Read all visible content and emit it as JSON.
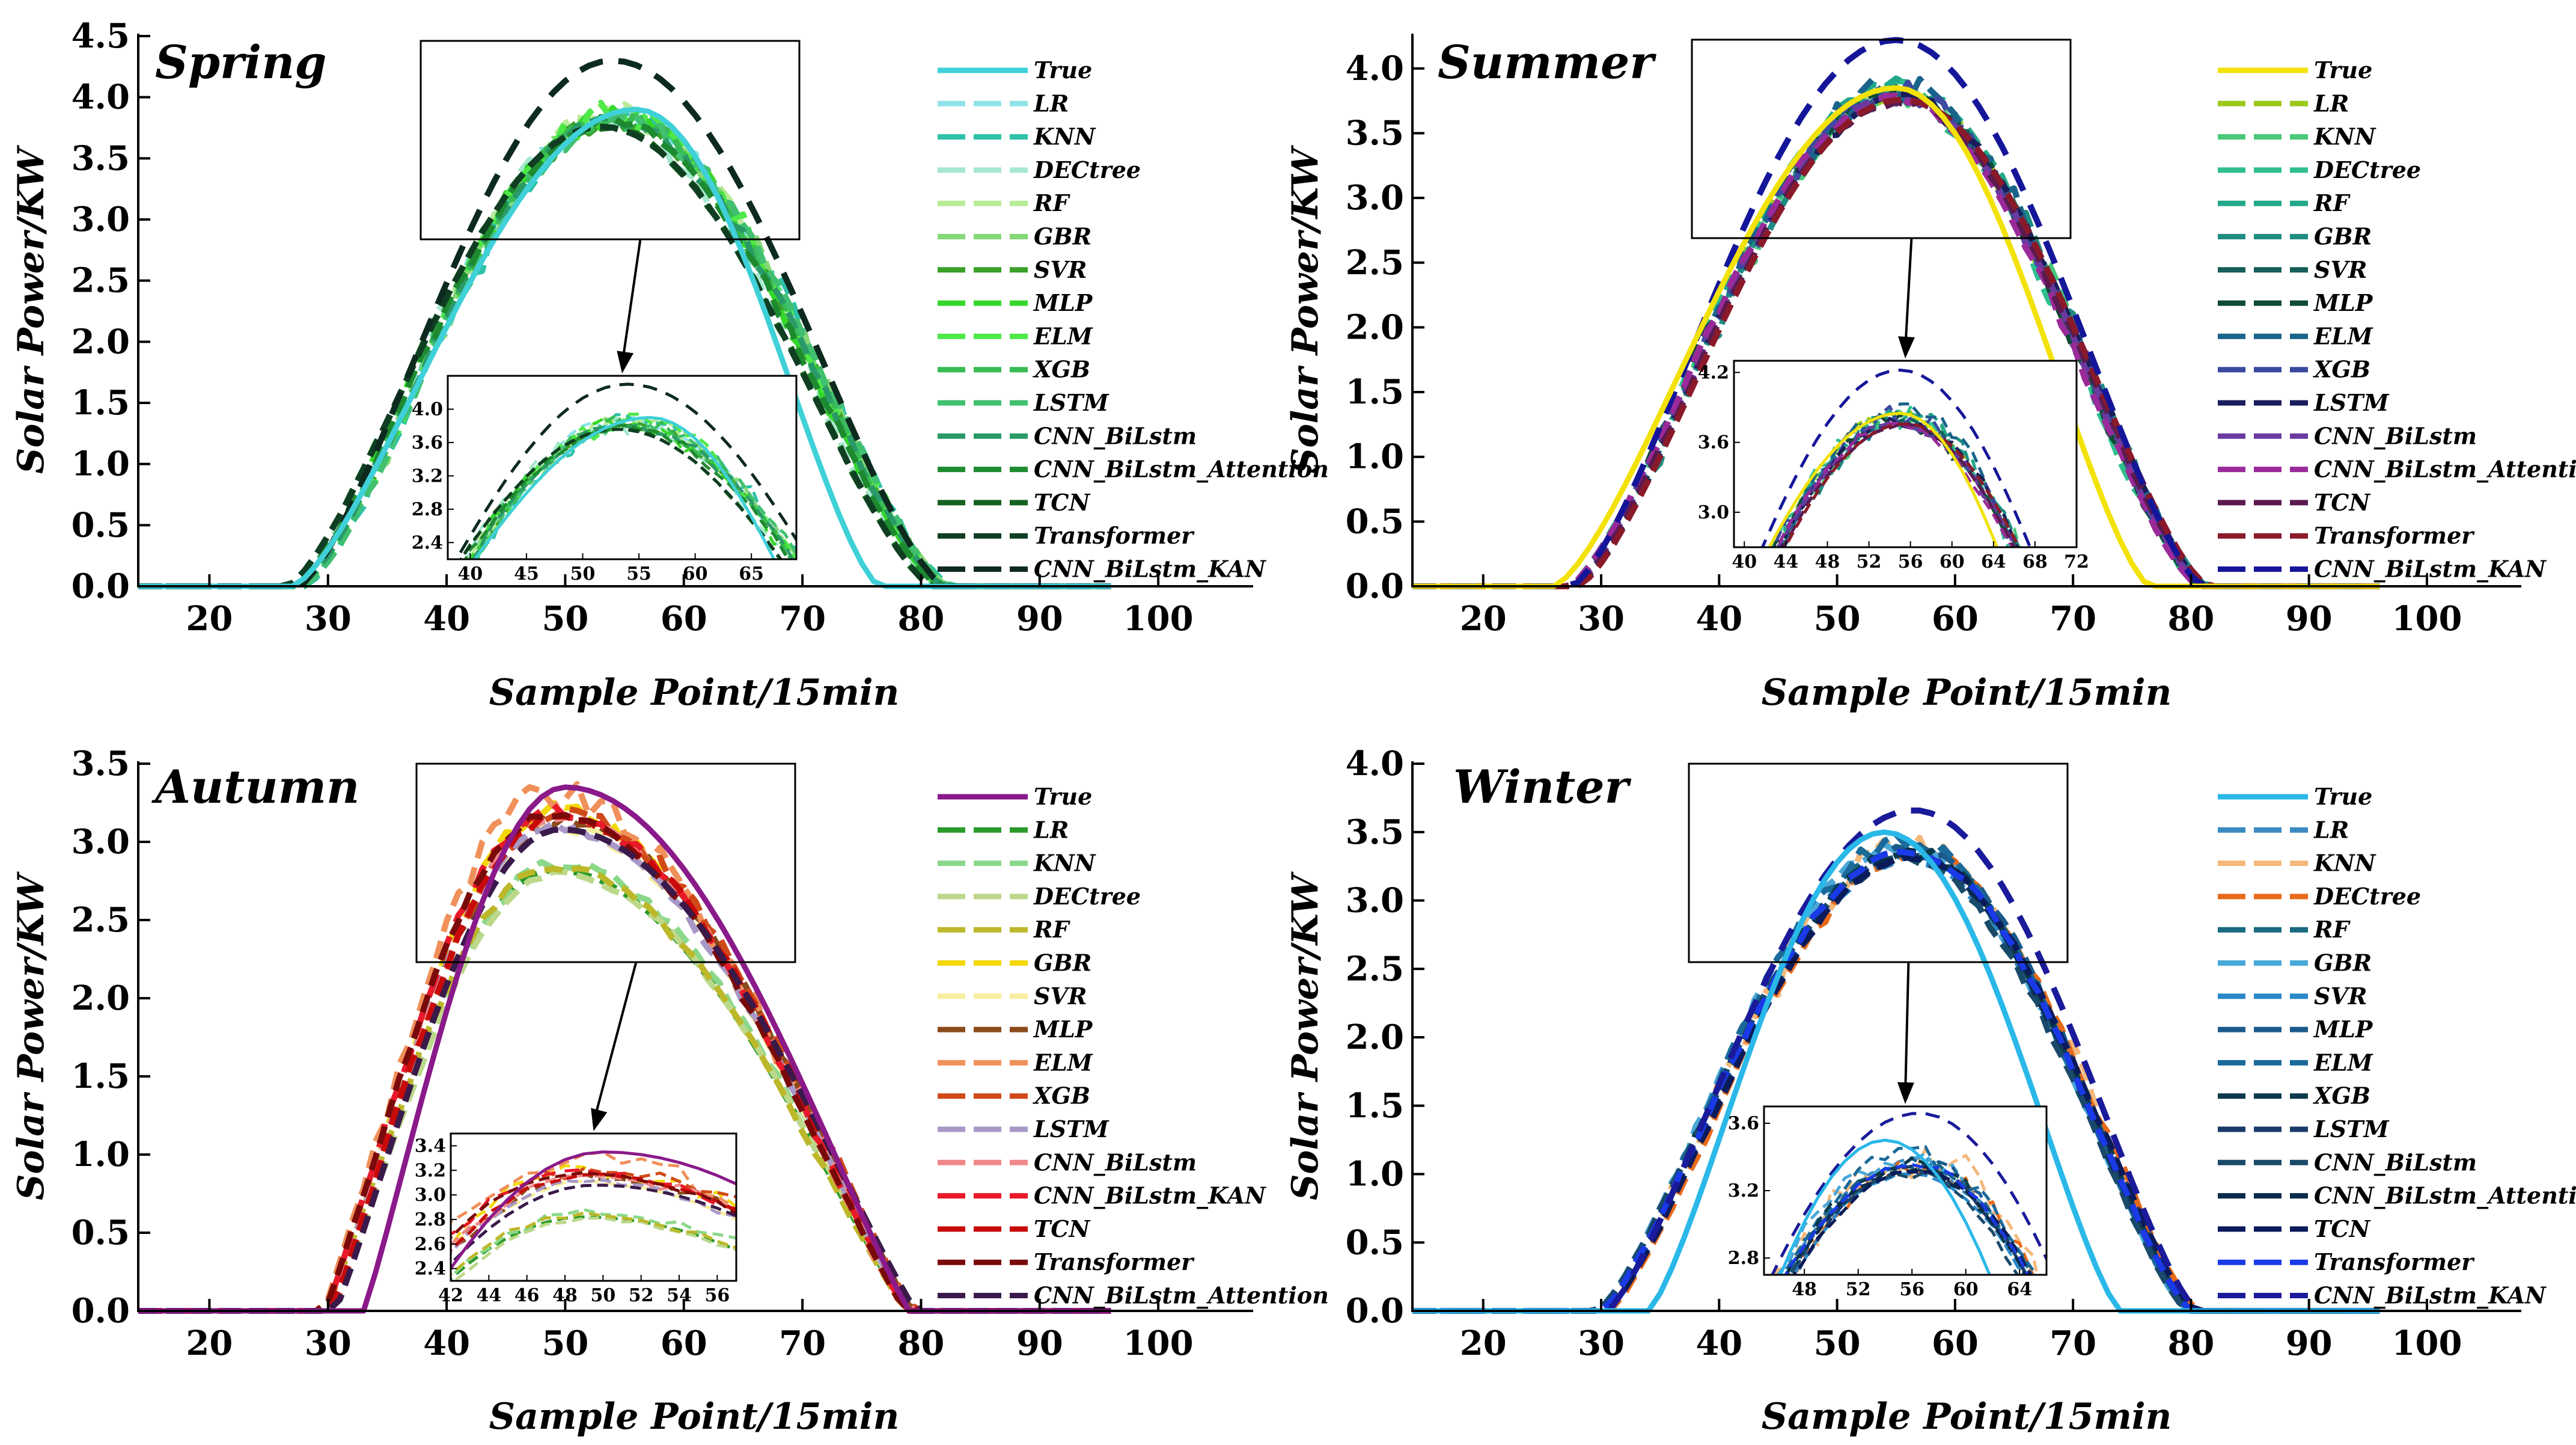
{
  "figure": {
    "x_axis_label": "Sample Point/15min",
    "y_axis_label": "Solar Power/KW"
  },
  "chart_data": [
    {
      "type": "line",
      "title": "Spring",
      "xlabel": "Sample Point/15min",
      "ylabel": "Solar Power/KW",
      "xlim": [
        14,
        108
      ],
      "ylim": [
        0,
        4.5
      ],
      "xticks": [
        20,
        30,
        40,
        50,
        60,
        70,
        80,
        90,
        100
      ],
      "yticks": [
        0.0,
        0.5,
        1.0,
        1.5,
        2.0,
        2.5,
        3.0,
        3.5,
        4.0,
        4.5
      ],
      "ytick_labels": [
        "0.0",
        "0.5",
        "1.0",
        "1.5",
        "2.0",
        "2.5",
        "3.0",
        "3.5",
        "4.0",
        "4.5"
      ],
      "curve": {
        "start": 27.5,
        "end": 82,
        "peak_x": 54,
        "peak": 3.9,
        "p": 1.4
      },
      "true_curve": {
        "start": 27,
        "end": 76.5,
        "peak_x": 56,
        "peak": 3.9,
        "p": 1.4
      },
      "inset": {
        "xlim": [
          38,
          69
        ],
        "ylim": [
          2.2,
          4.4
        ],
        "xticks": [
          40,
          45,
          50,
          55,
          60,
          65
        ],
        "yticks": [
          2.4,
          2.8,
          3.2,
          3.6,
          4.0
        ]
      },
      "series": [
        {
          "name": "True",
          "color": "#3fd0d8",
          "solid": true,
          "peak": 3.9,
          "shift": 0,
          "noise": 0,
          "seed": 1
        },
        {
          "name": "LR",
          "color": "#8fe3e8",
          "solid": false,
          "peak": 3.86,
          "shift": 0,
          "noise": 0.09,
          "seed": 2
        },
        {
          "name": "KNN",
          "color": "#2dc2a8",
          "solid": false,
          "peak": 3.84,
          "shift": 0.5,
          "noise": 0.12,
          "seed": 3
        },
        {
          "name": "DECtree",
          "color": "#a6e8cf",
          "solid": false,
          "peak": 3.82,
          "shift": -0.5,
          "noise": 0.12,
          "seed": 4
        },
        {
          "name": "RF",
          "color": "#b8ec98",
          "solid": false,
          "peak": 3.86,
          "shift": 0,
          "noise": 0.1,
          "seed": 5
        },
        {
          "name": "GBR",
          "color": "#86d878",
          "solid": false,
          "peak": 3.84,
          "shift": 0.3,
          "noise": 0.11,
          "seed": 6
        },
        {
          "name": "SVR",
          "color": "#3aa028",
          "solid": false,
          "peak": 3.8,
          "shift": 0,
          "noise": 0.08,
          "seed": 7
        },
        {
          "name": "MLP",
          "color": "#35d82a",
          "solid": false,
          "peak": 3.84,
          "shift": -0.3,
          "noise": 0.12,
          "seed": 8
        },
        {
          "name": "ELM",
          "color": "#4ee848",
          "solid": false,
          "peak": 3.85,
          "shift": 0.2,
          "noise": 0.12,
          "seed": 9
        },
        {
          "name": "XGB",
          "color": "#38bb55",
          "solid": false,
          "peak": 3.84,
          "shift": 0,
          "noise": 0.1,
          "seed": 10
        },
        {
          "name": "LSTM",
          "color": "#40c070",
          "solid": false,
          "peak": 3.82,
          "shift": 0.4,
          "noise": 0.08,
          "seed": 11
        },
        {
          "name": "CNN_BiLstm",
          "color": "#2a9a68",
          "solid": false,
          "peak": 3.8,
          "shift": 0,
          "noise": 0.06,
          "seed": 12
        },
        {
          "name": "CNN_BiLstm_Attention",
          "color": "#1e8a30",
          "solid": false,
          "peak": 3.8,
          "shift": -0.4,
          "noise": 0.05,
          "seed": 13
        },
        {
          "name": "TCN",
          "color": "#14621e",
          "solid": false,
          "peak": 3.76,
          "shift": -1,
          "noise": 0.02,
          "seed": 14
        },
        {
          "name": "Transformer",
          "color": "#103e22",
          "solid": false,
          "peak": 3.76,
          "shift": -1,
          "noise": 0.0,
          "seed": 15
        },
        {
          "name": "CNN_BiLstm_KAN",
          "color": "#0d2a1e",
          "solid": false,
          "peak": 4.3,
          "shift": 0,
          "noise": 0.0,
          "seed": 16
        }
      ]
    },
    {
      "type": "line",
      "title": "Summer",
      "xlabel": "Sample Point/15min",
      "ylabel": "Solar Power/KW",
      "xlim": [
        14,
        108
      ],
      "ylim": [
        0,
        4.25
      ],
      "xticks": [
        20,
        30,
        40,
        50,
        60,
        70,
        80,
        90,
        100
      ],
      "yticks": [
        0.0,
        0.5,
        1.0,
        1.5,
        2.0,
        2.5,
        3.0,
        3.5,
        4.0
      ],
      "ytick_labels": [
        "0.0",
        "0.5",
        "1.0",
        "1.5",
        "2.0",
        "2.5",
        "3.0",
        "3.5",
        "4.0"
      ],
      "curve": {
        "start": 27.5,
        "end": 81,
        "peak_x": 55,
        "peak": 3.85,
        "p": 1.4
      },
      "true_curve": {
        "start": 26,
        "end": 76.5,
        "peak_x": 55,
        "peak": 3.85,
        "p": 1.4
      },
      "inset": {
        "xlim": [
          39,
          72
        ],
        "ylim": [
          2.7,
          4.3
        ],
        "xticks": [
          40,
          44,
          48,
          52,
          56,
          60,
          64,
          68,
          72
        ],
        "yticks": [
          3.0,
          3.6,
          4.2
        ]
      },
      "series": [
        {
          "name": "True",
          "color": "#f2e20a",
          "solid": true,
          "peak": 3.85,
          "shift": 0,
          "noise": 0,
          "seed": 1
        },
        {
          "name": "LR",
          "color": "#9ac81a",
          "solid": false,
          "peak": 3.82,
          "shift": 0,
          "noise": 0.08,
          "seed": 2
        },
        {
          "name": "KNN",
          "color": "#48c878",
          "solid": false,
          "peak": 3.8,
          "shift": 0.3,
          "noise": 0.1,
          "seed": 3
        },
        {
          "name": "DECtree",
          "color": "#2fbf8f",
          "solid": false,
          "peak": 3.82,
          "shift": -0.3,
          "noise": 0.1,
          "seed": 4
        },
        {
          "name": "RF",
          "color": "#22a888",
          "solid": false,
          "peak": 3.84,
          "shift": 0,
          "noise": 0.09,
          "seed": 5
        },
        {
          "name": "GBR",
          "color": "#1f8c82",
          "solid": false,
          "peak": 3.8,
          "shift": 0.4,
          "noise": 0.1,
          "seed": 6
        },
        {
          "name": "SVR",
          "color": "#155e5a",
          "solid": false,
          "peak": 3.78,
          "shift": 0,
          "noise": 0.07,
          "seed": 7
        },
        {
          "name": "MLP",
          "color": "#0f4a36",
          "solid": false,
          "peak": 3.8,
          "shift": -0.2,
          "noise": 0.09,
          "seed": 8
        },
        {
          "name": "ELM",
          "color": "#19648a",
          "solid": false,
          "peak": 3.84,
          "shift": 0.2,
          "noise": 0.12,
          "seed": 9
        },
        {
          "name": "XGB",
          "color": "#3a4aa0",
          "solid": false,
          "peak": 3.82,
          "shift": 0,
          "noise": 0.1,
          "seed": 10
        },
        {
          "name": "LSTM",
          "color": "#1a1d5a",
          "solid": false,
          "peak": 3.78,
          "shift": 0.3,
          "noise": 0.06,
          "seed": 11
        },
        {
          "name": "CNN_BiLstm",
          "color": "#6a3aa0",
          "solid": false,
          "peak": 3.76,
          "shift": 0,
          "noise": 0.05,
          "seed": 12
        },
        {
          "name": "CNN_BiLstm_Attention",
          "color": "#9a2a9a",
          "solid": false,
          "peak": 3.76,
          "shift": -0.3,
          "noise": 0.04,
          "seed": 13
        },
        {
          "name": "TCN",
          "color": "#5a1a50",
          "solid": false,
          "peak": 3.74,
          "shift": 0.2,
          "noise": 0.03,
          "seed": 14
        },
        {
          "name": "Transformer",
          "color": "#8a1a2a",
          "solid": false,
          "peak": 3.76,
          "shift": 0.5,
          "noise": 0.0,
          "seed": 15
        },
        {
          "name": "CNN_BiLstm_KAN",
          "color": "#15159a",
          "solid": false,
          "peak": 4.22,
          "shift": 0,
          "noise": 0.0,
          "seed": 16
        }
      ]
    },
    {
      "type": "line",
      "title": "Autumn",
      "xlabel": "Sample Point/15min",
      "ylabel": "Solar Power/KW",
      "xlim": [
        14,
        108
      ],
      "ylim": [
        0,
        3.5
      ],
      "xticks": [
        20,
        30,
        40,
        50,
        60,
        70,
        80,
        90,
        100
      ],
      "yticks": [
        0.0,
        0.5,
        1.0,
        1.5,
        2.0,
        2.5,
        3.0,
        3.5
      ],
      "ytick_labels": [
        "0.0",
        "0.5",
        "1.0",
        "1.5",
        "2.0",
        "2.5",
        "3.0",
        "3.5"
      ],
      "curve": {
        "start": 30,
        "end": 79,
        "peak_x": 49,
        "peak": 3.2,
        "p": 1.1
      },
      "true_curve": {
        "start": 33,
        "end": 79,
        "peak_x": 50,
        "peak": 3.35,
        "p": 1.1
      },
      "inset": {
        "xlim": [
          42,
          57
        ],
        "ylim": [
          2.3,
          3.5
        ],
        "xticks": [
          42,
          44,
          46,
          48,
          50,
          52,
          54,
          56
        ],
        "yticks": [
          2.4,
          2.6,
          2.8,
          3.0,
          3.2,
          3.4
        ]
      },
      "series": [
        {
          "name": "True",
          "color": "#8a1a8a",
          "solid": true,
          "peak": 3.35,
          "shift": 0,
          "noise": 0,
          "seed": 1
        },
        {
          "name": "LR",
          "color": "#2a9a2a",
          "solid": false,
          "peak": 2.82,
          "shift": 0,
          "noise": 0.0,
          "seed": 2
        },
        {
          "name": "KNN",
          "color": "#8ad88a",
          "solid": false,
          "peak": 2.86,
          "shift": 0.3,
          "noise": 0.04,
          "seed": 3
        },
        {
          "name": "DECtree",
          "color": "#bcd88a",
          "solid": false,
          "peak": 2.8,
          "shift": 0.2,
          "noise": 0.02,
          "seed": 4
        },
        {
          "name": "RF",
          "color": "#bcb82a",
          "solid": false,
          "peak": 2.84,
          "shift": -0.2,
          "noise": 0.03,
          "seed": 5
        },
        {
          "name": "GBR",
          "color": "#f2d80a",
          "solid": false,
          "peak": 3.2,
          "shift": 0,
          "noise": 0.06,
          "seed": 6
        },
        {
          "name": "SVR",
          "color": "#f8eea0",
          "solid": false,
          "peak": 3.1,
          "shift": 0,
          "noise": 0.03,
          "seed": 7
        },
        {
          "name": "MLP",
          "color": "#8a4a1a",
          "solid": false,
          "peak": 3.15,
          "shift": 0.3,
          "noise": 0.05,
          "seed": 8
        },
        {
          "name": "ELM",
          "color": "#f0905a",
          "solid": false,
          "peak": 3.3,
          "shift": -0.4,
          "noise": 0.1,
          "seed": 9
        },
        {
          "name": "XGB",
          "color": "#d04a18",
          "solid": false,
          "peak": 3.2,
          "shift": 0.4,
          "noise": 0.06,
          "seed": 10
        },
        {
          "name": "LSTM",
          "color": "#a898c8",
          "solid": false,
          "peak": 3.1,
          "shift": 0,
          "noise": 0.03,
          "seed": 11
        },
        {
          "name": "CNN_BiLstm",
          "color": "#f08888",
          "solid": false,
          "peak": 3.15,
          "shift": 0.2,
          "noise": 0.04,
          "seed": 12
        },
        {
          "name": "CNN_BiLstm_KAN",
          "color": "#e81a2a",
          "solid": false,
          "peak": 3.2,
          "shift": -0.2,
          "noise": 0.04,
          "seed": 13
        },
        {
          "name": "TCN",
          "color": "#c80a0a",
          "solid": false,
          "peak": 3.16,
          "shift": 0.3,
          "noise": 0.03,
          "seed": 14
        },
        {
          "name": "Transformer",
          "color": "#7a0a0a",
          "solid": false,
          "peak": 3.18,
          "shift": -0.3,
          "noise": 0.02,
          "seed": 15
        },
        {
          "name": "CNN_BiLstm_Attention",
          "color": "#3a1a4a",
          "solid": false,
          "peak": 3.08,
          "shift": 0.6,
          "noise": 0.0,
          "seed": 16
        }
      ]
    },
    {
      "type": "line",
      "title": "Winter",
      "xlabel": "Sample Point/15min",
      "ylabel": "Solar Power/KW",
      "xlim": [
        14,
        108
      ],
      "ylim": [
        0,
        4.0
      ],
      "xticks": [
        20,
        30,
        40,
        50,
        60,
        70,
        80,
        90,
        100
      ],
      "yticks": [
        0.0,
        0.5,
        1.0,
        1.5,
        2.0,
        2.5,
        3.0,
        3.5,
        4.0
      ],
      "ytick_labels": [
        "0.0",
        "0.5",
        "1.0",
        "1.5",
        "2.0",
        "2.5",
        "3.0",
        "3.5",
        "4.0"
      ],
      "curve": {
        "start": 30,
        "end": 80,
        "peak_x": 56,
        "peak": 3.38,
        "p": 1.3
      },
      "true_curve": {
        "start": 34,
        "end": 74,
        "peak_x": 54,
        "peak": 3.5,
        "p": 1.3
      },
      "inset": {
        "xlim": [
          45,
          66
        ],
        "ylim": [
          2.7,
          3.7
        ],
        "xticks": [
          48,
          52,
          56,
          60,
          64
        ],
        "yticks": [
          2.8,
          3.2,
          3.6
        ]
      },
      "series": [
        {
          "name": "True",
          "color": "#2ab8e8",
          "solid": true,
          "peak": 3.5,
          "shift": 0,
          "noise": 0,
          "seed": 1
        },
        {
          "name": "LR",
          "color": "#3a8ac0",
          "solid": false,
          "peak": 3.36,
          "shift": 0,
          "noise": 0.04,
          "seed": 2
        },
        {
          "name": "KNN",
          "color": "#f4b87a",
          "solid": false,
          "peak": 3.4,
          "shift": 0.3,
          "noise": 0.14,
          "seed": 3
        },
        {
          "name": "DECtree",
          "color": "#e86a1a",
          "solid": false,
          "peak": 3.34,
          "shift": 0.6,
          "noise": 0.06,
          "seed": 4
        },
        {
          "name": "RF",
          "color": "#1a6a80",
          "solid": false,
          "peak": 3.36,
          "shift": 0,
          "noise": 0.05,
          "seed": 5
        },
        {
          "name": "GBR",
          "color": "#4aa8d8",
          "solid": false,
          "peak": 3.4,
          "shift": -0.3,
          "noise": 0.06,
          "seed": 6
        },
        {
          "name": "SVR",
          "color": "#2a88c8",
          "solid": false,
          "peak": 3.3,
          "shift": 0,
          "noise": 0.03,
          "seed": 7
        },
        {
          "name": "MLP",
          "color": "#1a5a8a",
          "solid": false,
          "peak": 3.38,
          "shift": 0.2,
          "noise": 0.05,
          "seed": 8
        },
        {
          "name": "ELM",
          "color": "#1a6a9a",
          "solid": false,
          "peak": 3.42,
          "shift": -0.2,
          "noise": 0.07,
          "seed": 9
        },
        {
          "name": "XGB",
          "color": "#0a3a4a",
          "solid": false,
          "peak": 3.36,
          "shift": 0,
          "noise": 0.05,
          "seed": 10
        },
        {
          "name": "LSTM",
          "color": "#1a3a6a",
          "solid": false,
          "peak": 3.32,
          "shift": 0.3,
          "noise": 0.03,
          "seed": 11
        },
        {
          "name": "CNN_BiLstm",
          "color": "#1a4a6a",
          "solid": false,
          "peak": 3.3,
          "shift": -0.3,
          "noise": 0.03,
          "seed": 12
        },
        {
          "name": "CNN_BiLstm_Attention",
          "color": "#0a2a4a",
          "solid": false,
          "peak": 3.34,
          "shift": 0,
          "noise": 0.03,
          "seed": 13
        },
        {
          "name": "TCN",
          "color": "#0a1a5a",
          "solid": false,
          "peak": 3.32,
          "shift": 0.4,
          "noise": 0.02,
          "seed": 14
        },
        {
          "name": "Transformer",
          "color": "#1a3ae8",
          "solid": false,
          "peak": 3.36,
          "shift": 0,
          "noise": 0.02,
          "seed": 15
        },
        {
          "name": "CNN_BiLstm_KAN",
          "color": "#1a1a9a",
          "solid": false,
          "peak": 3.66,
          "shift": 0.5,
          "noise": 0.0,
          "seed": 16
        }
      ]
    }
  ]
}
